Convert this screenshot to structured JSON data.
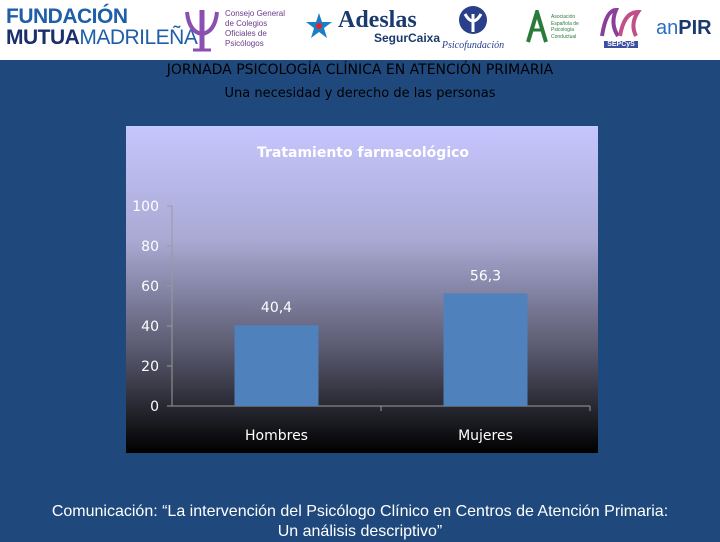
{
  "logos": {
    "fundacion_line1": "FUNDACIÓN",
    "fundacion_line2a": "MUTUA",
    "fundacion_line2b": "MADRILEÑA",
    "cgcop_text": "Consejo General de Colegios Oficiales de Psicólogos",
    "adeslas_name": "Adeslas",
    "adeslas_sub": "SegurCaixa",
    "psicofundacion": "Psicofundación",
    "aepc_text": "Asociación Española de Psicología Conductual",
    "sepcys": "SEPCyS",
    "anpir_an": "an",
    "anpir_pir": "PIR"
  },
  "header": {
    "title": "JORNADA PSICOLOGÍA CLÍNICA EN ATENCIÓN PRIMARIA",
    "subtitle": "Una necesidad y derecho de las personas"
  },
  "chart_data": {
    "type": "bar",
    "title": "Tratamiento farmacológico",
    "categories": [
      "Hombres",
      "Mujeres"
    ],
    "values": [
      40.4,
      56.3
    ],
    "value_labels": [
      "40,4",
      "56,3"
    ],
    "ylim": [
      0,
      100
    ],
    "yticks": [
      0,
      20,
      40,
      60,
      80,
      100
    ],
    "xlabel": "",
    "ylabel": "",
    "bar_color": "#4f81bd",
    "grid": false,
    "legend": "none"
  },
  "footer": {
    "line1": "Comunicación: “La intervención del Psicólogo Clínico en Centros de Atención Primaria:",
    "line2": "Un análisis descriptivo”"
  }
}
